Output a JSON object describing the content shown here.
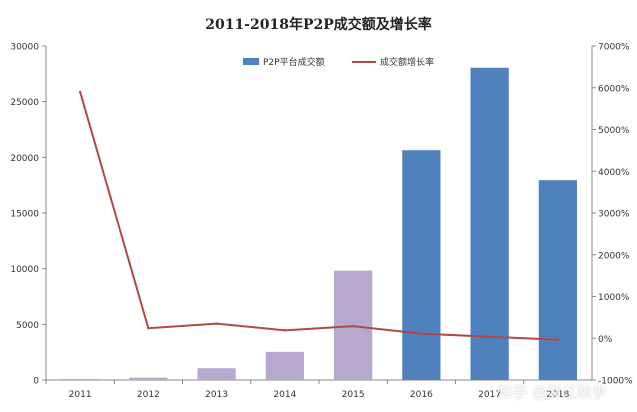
{
  "chart_data": {
    "type": "bar",
    "title": "2011-2018年P2P成交额及增长率",
    "categories": [
      "2011",
      "2012",
      "2013",
      "2014",
      "2015",
      "2016",
      "2017",
      "2018"
    ],
    "series": [
      {
        "name": "P2P平台成交额",
        "kind": "bar",
        "axis": "left",
        "values": [
          96,
          212,
          1058,
          2528,
          9823,
          20639,
          28049,
          17948
        ],
        "colors": [
          "#b7a8cf",
          "#b7a8cf",
          "#b7a8cf",
          "#b7a8cf",
          "#b7a8cf",
          "#4f81bd",
          "#4f81bd",
          "#4f81bd"
        ]
      },
      {
        "name": "成交额增长率",
        "kind": "line",
        "axis": "right",
        "values": [
          5900,
          240,
          350,
          190,
          290,
          110,
          36,
          -36
        ],
        "color": "#b04844"
      }
    ],
    "y_left": {
      "min": 0,
      "max": 30000,
      "ticks": [
        "0",
        "5000",
        "10000",
        "15000",
        "20000",
        "25000",
        "30000"
      ]
    },
    "y_right": {
      "min": -1000,
      "max": 7000,
      "ticks": [
        "-1000%",
        "0%",
        "1000%",
        "2000%",
        "3000%",
        "4000%",
        "5000%",
        "6000%",
        "7000%"
      ]
    },
    "legend_position": "top-right",
    "grid": false
  },
  "watermark": "知乎 @浙江秋歩"
}
